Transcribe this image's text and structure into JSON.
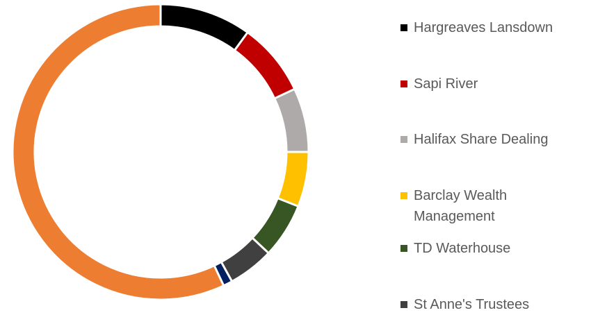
{
  "chart_data": {
    "type": "donut",
    "categories": [
      "Hargreaves Lansdown",
      "Sapi River",
      "Halifax Share Dealing",
      "Barclay Wealth Management",
      "TD Waterhouse",
      "St Anne's Trustees",
      null,
      null
    ],
    "values": [
      10,
      8,
      7,
      6,
      6,
      5,
      1,
      57
    ],
    "colors": [
      "#000000",
      "#c00000",
      "#aeaaaa",
      "#ffc000",
      "#375623",
      "#404040",
      "#002060",
      "#ed7d31"
    ],
    "legend": "right"
  }
}
